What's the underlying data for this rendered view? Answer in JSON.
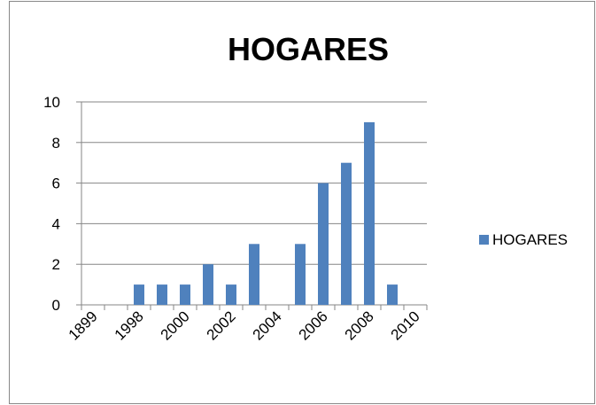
{
  "chart_data": {
    "type": "bar",
    "title": "HOGARES",
    "categories": [
      "1899",
      null,
      "1998",
      null,
      "2000",
      null,
      "2002",
      null,
      "2004",
      null,
      "2006",
      null,
      "2008",
      null,
      "2010"
    ],
    "series": [
      {
        "name": "HOGARES",
        "color": "#4f81bd",
        "values": [
          0,
          0,
          1,
          1,
          1,
          2,
          1,
          3,
          0,
          3,
          6,
          7,
          9,
          1,
          0
        ]
      }
    ],
    "ylim": [
      0,
      10
    ],
    "yticks": [
      0,
      2,
      4,
      6,
      8,
      10
    ],
    "grid": true,
    "legend": "right"
  }
}
